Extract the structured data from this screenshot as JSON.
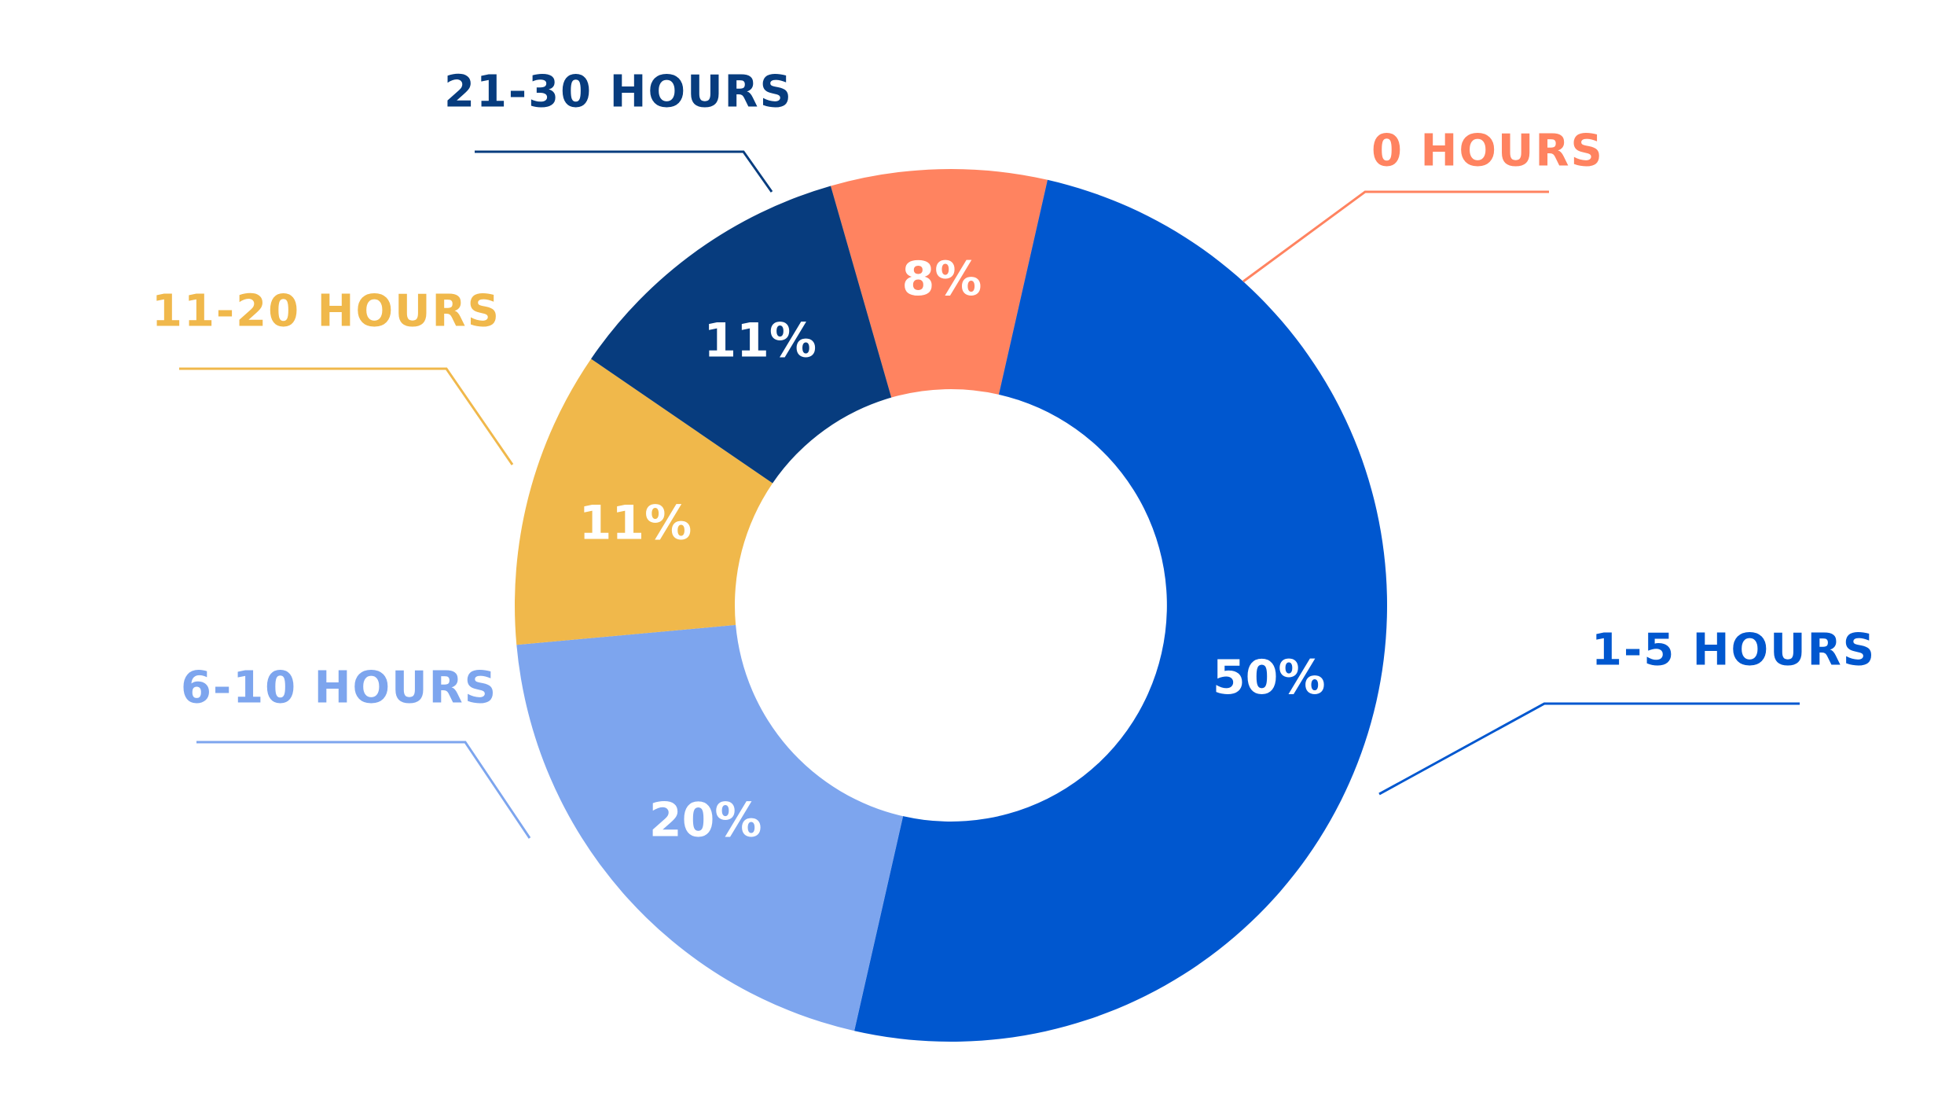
{
  "chart_data": {
    "type": "pie",
    "donut": true,
    "slices": [
      {
        "label": "0 HOURS",
        "value": 8,
        "value_label": "8%",
        "color": "#FF8360"
      },
      {
        "label": "1-5 HOURS",
        "value": 50,
        "value_label": "50%",
        "color": "#0057CF"
      },
      {
        "label": "6-10 HOURS",
        "value": 20,
        "value_label": "20%",
        "color": "#7DA5EE"
      },
      {
        "label": "11-20 HOURS",
        "value": 11,
        "value_label": "11%",
        "color": "#F0B84B"
      },
      {
        "label": "21-30 HOURS",
        "value": 11,
        "value_label": "11%",
        "color": "#073C7E"
      }
    ],
    "title": "",
    "legend": "callout labels around the chart"
  }
}
